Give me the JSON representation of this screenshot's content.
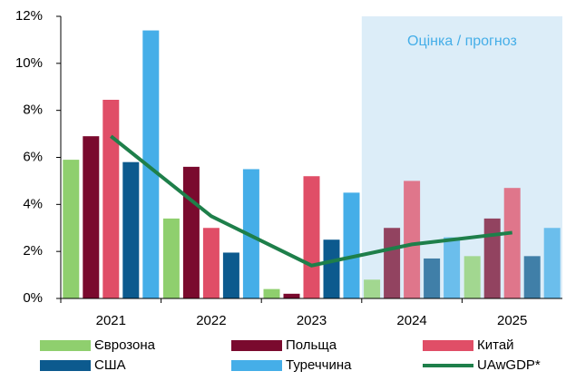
{
  "chart_data": {
    "type": "bar",
    "annotation": "Оцінка / прогноз",
    "shaded_from": "2024",
    "categories": [
      "2021",
      "2022",
      "2023",
      "2024",
      "2025"
    ],
    "series": [
      {
        "name": "Єврозона",
        "color": "#8fcf6e",
        "values": [
          5.9,
          3.4,
          0.4,
          0.8,
          1.8
        ]
      },
      {
        "name": "Польща",
        "color": "#7a0a2e",
        "values": [
          6.9,
          5.6,
          0.2,
          3.0,
          3.4
        ]
      },
      {
        "name": "Китай",
        "color": "#e04e67",
        "values": [
          8.45,
          3.0,
          5.2,
          5.0,
          4.7
        ]
      },
      {
        "name": "США",
        "color": "#0c5a8e",
        "values": [
          5.8,
          1.95,
          2.5,
          1.7,
          1.8
        ]
      },
      {
        "name": "Туреччина",
        "color": "#45aee8",
        "values": [
          11.4,
          5.5,
          4.5,
          2.6,
          3.0
        ]
      },
      {
        "name": "UAwGDP*",
        "color": "#1e7f4a",
        "type": "line",
        "values": [
          6.9,
          3.5,
          1.4,
          2.3,
          2.8
        ]
      }
    ],
    "ylim": [
      0,
      12
    ],
    "yticks": [
      {
        "value": 0,
        "label": "0%"
      },
      {
        "value": 2,
        "label": "2%"
      },
      {
        "value": 4,
        "label": "4%"
      },
      {
        "value": 6,
        "label": "6%"
      },
      {
        "value": 8,
        "label": "8%"
      },
      {
        "value": 10,
        "label": "10%"
      },
      {
        "value": 12,
        "label": "12%"
      }
    ]
  }
}
